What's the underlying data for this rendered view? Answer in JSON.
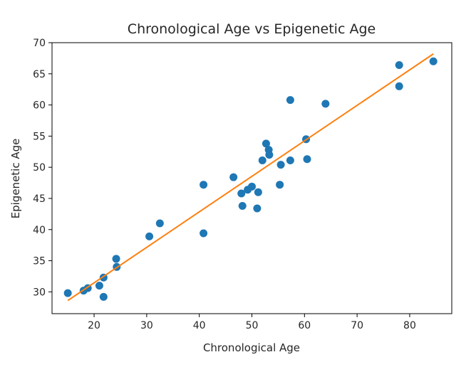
{
  "chart_data": {
    "type": "scatter",
    "title": "Chronological Age vs Epigenetic Age",
    "xlabel": "Chronological Age",
    "ylabel": "Epigenetic Age",
    "xlim": [
      12.0,
      88.0
    ],
    "ylim": [
      26.5,
      70.0
    ],
    "x_ticks": [
      20,
      30,
      40,
      50,
      60,
      70,
      80
    ],
    "y_ticks": [
      30,
      35,
      40,
      45,
      50,
      55,
      60,
      65,
      70
    ],
    "grid": false,
    "colors": {
      "points": "#1f77b4",
      "fit_line": "#ff7f0e",
      "axes": "#000000"
    },
    "series": [
      {
        "kind": "points",
        "points": [
          [
            15.0,
            29.8
          ],
          [
            18.0,
            30.2
          ],
          [
            18.8,
            30.6
          ],
          [
            21.0,
            31.0
          ],
          [
            21.8,
            32.3
          ],
          [
            21.8,
            29.2
          ],
          [
            24.2,
            35.3
          ],
          [
            24.3,
            34.0
          ],
          [
            30.5,
            38.9
          ],
          [
            32.5,
            41.0
          ],
          [
            40.8,
            47.2
          ],
          [
            40.8,
            39.4
          ],
          [
            46.5,
            48.4
          ],
          [
            48.0,
            45.8
          ],
          [
            48.2,
            43.8
          ],
          [
            49.2,
            46.4
          ],
          [
            50.0,
            46.9
          ],
          [
            51.0,
            43.4
          ],
          [
            51.2,
            46.0
          ],
          [
            52.0,
            51.1
          ],
          [
            52.7,
            53.8
          ],
          [
            53.2,
            52.8
          ],
          [
            53.3,
            52.0
          ],
          [
            55.3,
            47.2
          ],
          [
            55.5,
            50.4
          ],
          [
            57.3,
            51.1
          ],
          [
            57.3,
            60.8
          ],
          [
            60.3,
            54.5
          ],
          [
            60.5,
            51.3
          ],
          [
            64.0,
            60.2
          ],
          [
            78.0,
            66.4
          ],
          [
            78.0,
            63.0
          ],
          [
            84.5,
            67.0
          ]
        ]
      },
      {
        "kind": "fit-line",
        "line": [
          [
            15.0,
            28.6
          ],
          [
            84.5,
            68.2
          ]
        ]
      }
    ]
  }
}
